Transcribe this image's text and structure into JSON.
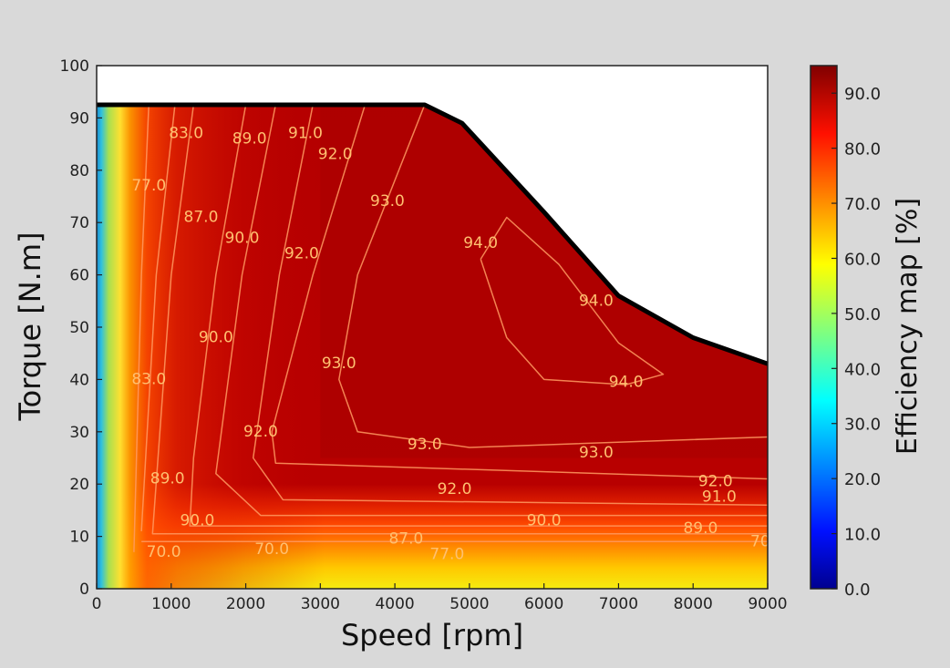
{
  "chart_data": {
    "type": "heatmap",
    "subtype": "filled-contour",
    "title": "",
    "xlabel": "Speed [rpm]",
    "ylabel": "Torque [N.m]",
    "xlim": [
      0,
      9000
    ],
    "ylim": [
      0,
      100
    ],
    "x_ticks": [
      "0",
      "1000",
      "2000",
      "3000",
      "4000",
      "5000",
      "6000",
      "7000",
      "8000",
      "9000"
    ],
    "y_ticks": [
      "0",
      "10",
      "20",
      "30",
      "40",
      "50",
      "60",
      "70",
      "80",
      "90",
      "100"
    ],
    "grid": false,
    "colormap": "jet",
    "colorbar": {
      "label": "Efficiency map [%]",
      "range": [
        0,
        95
      ],
      "ticks": [
        "0.0",
        "10.0",
        "20.0",
        "30.0",
        "40.0",
        "50.0",
        "60.0",
        "70.0",
        "80.0",
        "90.0"
      ]
    },
    "torque_envelope": [
      [
        0,
        92.5
      ],
      [
        4400,
        92.5
      ],
      [
        4900,
        89
      ],
      [
        6000,
        72
      ],
      [
        7000,
        56
      ],
      [
        8000,
        48
      ],
      [
        9000,
        43
      ]
    ],
    "contour_levels": [
      {
        "level": 70.0,
        "path": [
          [
            600,
            9
          ],
          [
            9000,
            9
          ]
        ]
      },
      {
        "level": 77.0,
        "path": [
          [
            700,
            92.5
          ],
          [
            600,
            60
          ],
          [
            500,
            7
          ]
        ]
      },
      {
        "level": 83.0,
        "path": [
          [
            1050,
            92.5
          ],
          [
            800,
            60
          ],
          [
            600,
            11
          ]
        ]
      },
      {
        "level": 87.0,
        "path": [
          [
            1300,
            92.5
          ],
          [
            1000,
            60
          ],
          [
            750,
            10.5
          ],
          [
            9000,
            10.5
          ]
        ]
      },
      {
        "level": 89.0,
        "path": [
          [
            2000,
            92.5
          ],
          [
            1600,
            60
          ],
          [
            1300,
            25
          ],
          [
            1250,
            12
          ],
          [
            9000,
            12
          ]
        ]
      },
      {
        "level": 90.0,
        "path": [
          [
            2400,
            92.5
          ],
          [
            1950,
            60
          ],
          [
            1600,
            22
          ],
          [
            2200,
            14
          ],
          [
            9000,
            14
          ]
        ]
      },
      {
        "level": 91.0,
        "path": [
          [
            2900,
            92.5
          ],
          [
            2450,
            60
          ],
          [
            2100,
            25
          ],
          [
            2500,
            17
          ],
          [
            9000,
            16
          ]
        ]
      },
      {
        "level": 92.0,
        "path": [
          [
            3600,
            92.5
          ],
          [
            2900,
            60
          ],
          [
            2350,
            30
          ],
          [
            2400,
            24
          ],
          [
            9000,
            21
          ]
        ]
      },
      {
        "level": 93.0,
        "path": [
          [
            4400,
            92.5
          ],
          [
            3500,
            60
          ],
          [
            3250,
            40
          ],
          [
            3500,
            30
          ],
          [
            5000,
            27
          ],
          [
            9000,
            29
          ]
        ]
      },
      {
        "level": 94.0,
        "path": [
          [
            5150,
            63
          ],
          [
            5500,
            71
          ],
          [
            6200,
            62
          ],
          [
            7000,
            47
          ],
          [
            7600,
            41
          ],
          [
            7100,
            39
          ],
          [
            6000,
            40
          ],
          [
            5500,
            48
          ],
          [
            5150,
            63
          ]
        ]
      }
    ],
    "contour_labels": [
      {
        "text": "83.0",
        "x": 1200,
        "y": 87
      },
      {
        "text": "89.0",
        "x": 2050,
        "y": 86
      },
      {
        "text": "91.0",
        "x": 2800,
        "y": 87
      },
      {
        "text": "92.0",
        "x": 3200,
        "y": 83
      },
      {
        "text": "77.0",
        "x": 700,
        "y": 77
      },
      {
        "text": "87.0",
        "x": 1400,
        "y": 71
      },
      {
        "text": "90.0",
        "x": 1950,
        "y": 67
      },
      {
        "text": "93.0",
        "x": 3900,
        "y": 74
      },
      {
        "text": "92.0",
        "x": 2750,
        "y": 64
      },
      {
        "text": "94.0",
        "x": 5150,
        "y": 66
      },
      {
        "text": "94.0",
        "x": 6700,
        "y": 55
      },
      {
        "text": "90.0",
        "x": 1600,
        "y": 48
      },
      {
        "text": "93.0",
        "x": 3250,
        "y": 43
      },
      {
        "text": "83.0",
        "x": 700,
        "y": 40
      },
      {
        "text": "94.0",
        "x": 7100,
        "y": 39.5
      },
      {
        "text": "92.0",
        "x": 2200,
        "y": 30
      },
      {
        "text": "93.0",
        "x": 4400,
        "y": 27.5
      },
      {
        "text": "93.0",
        "x": 6700,
        "y": 26
      },
      {
        "text": "89.0",
        "x": 950,
        "y": 21
      },
      {
        "text": "92.0",
        "x": 4800,
        "y": 19
      },
      {
        "text": "92.0",
        "x": 8300,
        "y": 20.5
      },
      {
        "text": "91.0",
        "x": 8350,
        "y": 17.5
      },
      {
        "text": "90.0",
        "x": 1350,
        "y": 13
      },
      {
        "text": "90.0",
        "x": 6000,
        "y": 13
      },
      {
        "text": "89.0",
        "x": 8100,
        "y": 11.5
      },
      {
        "text": "87.0",
        "x": 4150,
        "y": 9.5
      },
      {
        "text": "70.0",
        "x": 900,
        "y": 7
      },
      {
        "text": "70.0",
        "x": 2350,
        "y": 7.5
      },
      {
        "text": "77.0",
        "x": 4700,
        "y": 6.5
      },
      {
        "text": "70",
        "x": 8900,
        "y": 9
      }
    ]
  }
}
